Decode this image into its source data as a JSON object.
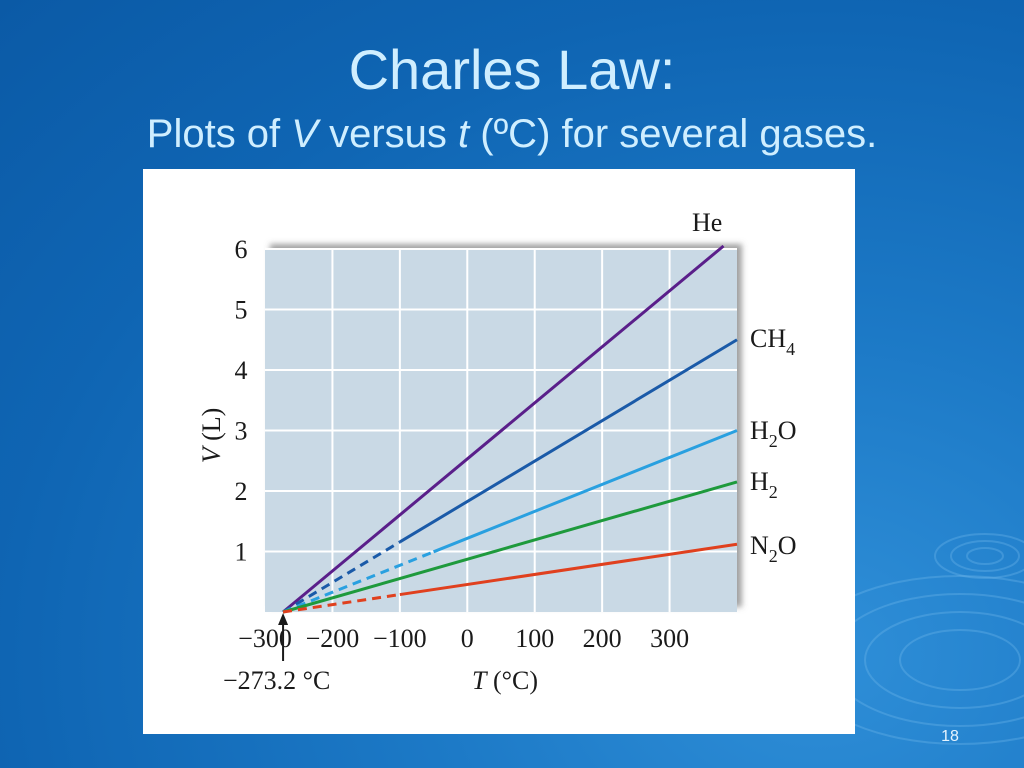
{
  "slide": {
    "title": "Charles Law:",
    "subtitle_prefix": "Plots of ",
    "subtitle_v": "V",
    "subtitle_mid": " versus ",
    "subtitle_t": "t",
    "subtitle_suffix": " (ºC) for several gases.",
    "slide_number": "18",
    "background_color": "#0f65b3",
    "title_color": "#cfeeff"
  },
  "chart_data": {
    "type": "line",
    "title": "",
    "xlabel_var": "T",
    "xlabel_unit": " (°C)",
    "ylabel_var": "V",
    "ylabel_unit": " (L)",
    "xlim": [
      -300,
      400
    ],
    "ylim": [
      0,
      6
    ],
    "x_ticks": [
      -300,
      -200,
      -100,
      0,
      100,
      200,
      300
    ],
    "x_tick_labels": [
      "−300",
      "−200",
      "−100",
      "0",
      "100",
      "200",
      "300"
    ],
    "y_ticks": [
      1,
      2,
      3,
      4,
      5,
      6
    ],
    "y_tick_labels": [
      "1",
      "2",
      "3",
      "4",
      "5",
      "6"
    ],
    "grid": true,
    "extrapolation_annotation": "−273.2 °C",
    "absolute_zero": -273.2,
    "series": [
      {
        "name": "He",
        "sub": "",
        "tail": "",
        "x": [
          -273.2,
          0,
          380
        ],
        "y": [
          0,
          2.6,
          6.05
        ],
        "color": "#5a1f8a",
        "dashed_below": -273.2
      },
      {
        "name": "CH",
        "sub": "4",
        "tail": "",
        "x": [
          -273.2,
          0,
          400
        ],
        "y": [
          0,
          1.82,
          4.5
        ],
        "color": "#1a5aa8",
        "dashed_below": -100
      },
      {
        "name": "H",
        "sub": "2",
        "tail": "O",
        "x": [
          -273.2,
          0,
          400
        ],
        "y": [
          0,
          1.22,
          3.0
        ],
        "color": "#29a0e0",
        "dashed_below": -50
      },
      {
        "name": "H",
        "sub": "2",
        "tail": "",
        "x": [
          -273.2,
          0,
          400
        ],
        "y": [
          0,
          0.87,
          2.15
        ],
        "color": "#1e9a3c",
        "dashed_below": -273.2
      },
      {
        "name": "N",
        "sub": "2",
        "tail": "O",
        "x": [
          -273.2,
          0,
          400
        ],
        "y": [
          0,
          0.45,
          1.12
        ],
        "color": "#e0401e",
        "dashed_below": -100
      }
    ]
  }
}
